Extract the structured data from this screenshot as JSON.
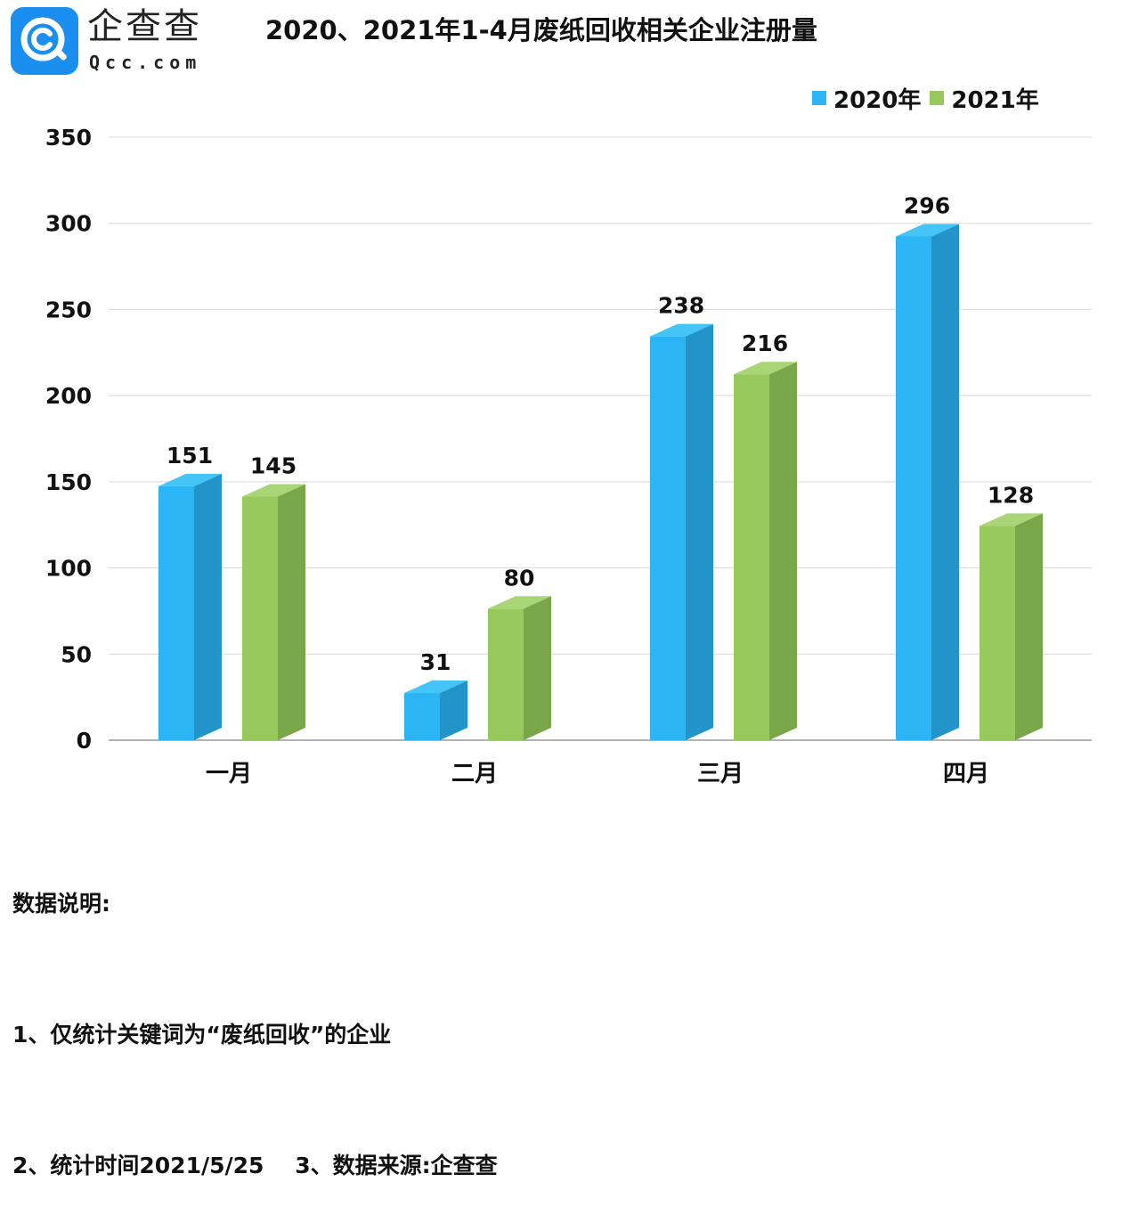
{
  "logo": {
    "text_cn": "企查查",
    "text_en": "Qcc.com"
  },
  "colors": {
    "series_2020": "#2bb5f4",
    "series_2020_side": "#2394c8",
    "series_2020_top": "#45c4f7",
    "series_2021": "#97c95c",
    "series_2021_side": "#7aa64a",
    "series_2021_top": "#aad577",
    "gridline": "#d8d8d8",
    "axis": "#9a9a9a",
    "logo_bg": "#1a8ff0"
  },
  "chart_data": {
    "type": "bar",
    "title": "2020、2021年1-4月废纸回收相关企业注册量",
    "categories": [
      "一月",
      "二月",
      "三月",
      "四月"
    ],
    "series": [
      {
        "name": "2020年",
        "values": [
          151,
          31,
          238,
          296
        ]
      },
      {
        "name": "2021年",
        "values": [
          145,
          80,
          216,
          128
        ]
      }
    ],
    "ylim": [
      0,
      350
    ],
    "yticks": [
      0,
      50,
      100,
      150,
      200,
      250,
      300,
      350
    ],
    "grid": true,
    "legend_position": "top-right",
    "data_labels": true,
    "xlabel": "",
    "ylabel": ""
  },
  "notes": {
    "heading": "数据说明:",
    "line1": "1、仅统计关键词为“废纸回收”的企业",
    "line2": "2、统计时间2021/5/25    3、数据来源:企查查"
  }
}
